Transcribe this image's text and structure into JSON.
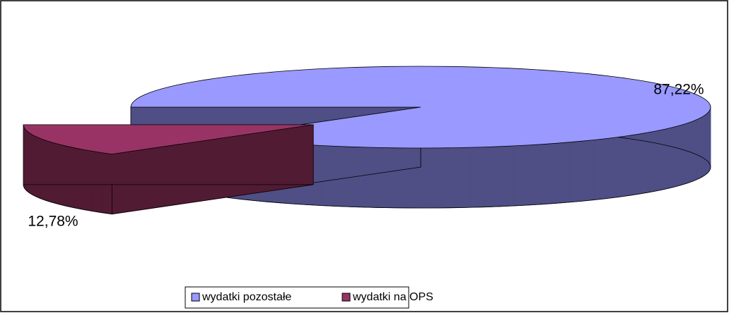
{
  "chart_data": {
    "type": "pie",
    "categories": [
      "wydatki pozostałe",
      "wydatki na OPS"
    ],
    "values": [
      87.22,
      12.78
    ],
    "value_labels": [
      "87,22%",
      "12,78%"
    ],
    "colors": [
      "#9999ff",
      "#993366"
    ],
    "side_colors": [
      "#4f4f86",
      "#511b33"
    ],
    "legend": "bottom"
  }
}
